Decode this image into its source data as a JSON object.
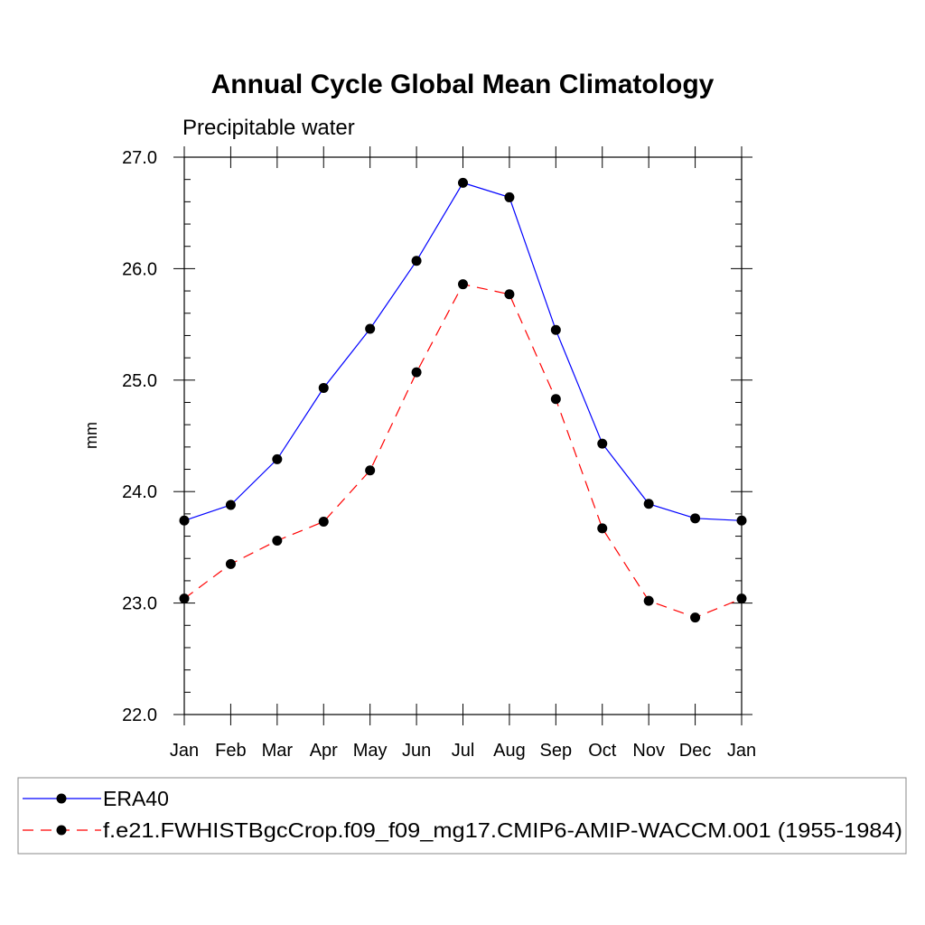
{
  "chart_data": {
    "type": "line",
    "title": "Annual Cycle Global Mean Climatology",
    "subtitle": "Precipitable water",
    "ylabel": "mm",
    "xlabel": "",
    "categories": [
      "Jan",
      "Feb",
      "Mar",
      "Apr",
      "May",
      "Jun",
      "Jul",
      "Aug",
      "Sep",
      "Oct",
      "Nov",
      "Dec",
      "Jan"
    ],
    "ylim": [
      22.0,
      27.0
    ],
    "yticks": [
      "22.0",
      "23.0",
      "24.0",
      "25.0",
      "26.0",
      "27.0"
    ],
    "y_minor_step": 0.2,
    "legend_position": "bottom",
    "series": [
      {
        "name": "ERA40",
        "color": "#0000ff",
        "dash": "solid",
        "marker": "circle",
        "values": [
          23.74,
          23.88,
          24.29,
          24.93,
          25.46,
          26.07,
          26.77,
          26.64,
          25.45,
          24.43,
          23.89,
          23.76,
          23.74
        ]
      },
      {
        "name": "f.e21.FWHISTBgcCrop.f09_f09_mg17.CMIP6-AMIP-WACCM.001 (1955-1984)",
        "color": "#ff0000",
        "dash": "dashed",
        "marker": "circle",
        "values": [
          23.04,
          23.35,
          23.56,
          23.73,
          24.19,
          25.07,
          25.86,
          25.77,
          24.83,
          23.67,
          23.02,
          22.87,
          23.04
        ]
      }
    ]
  }
}
